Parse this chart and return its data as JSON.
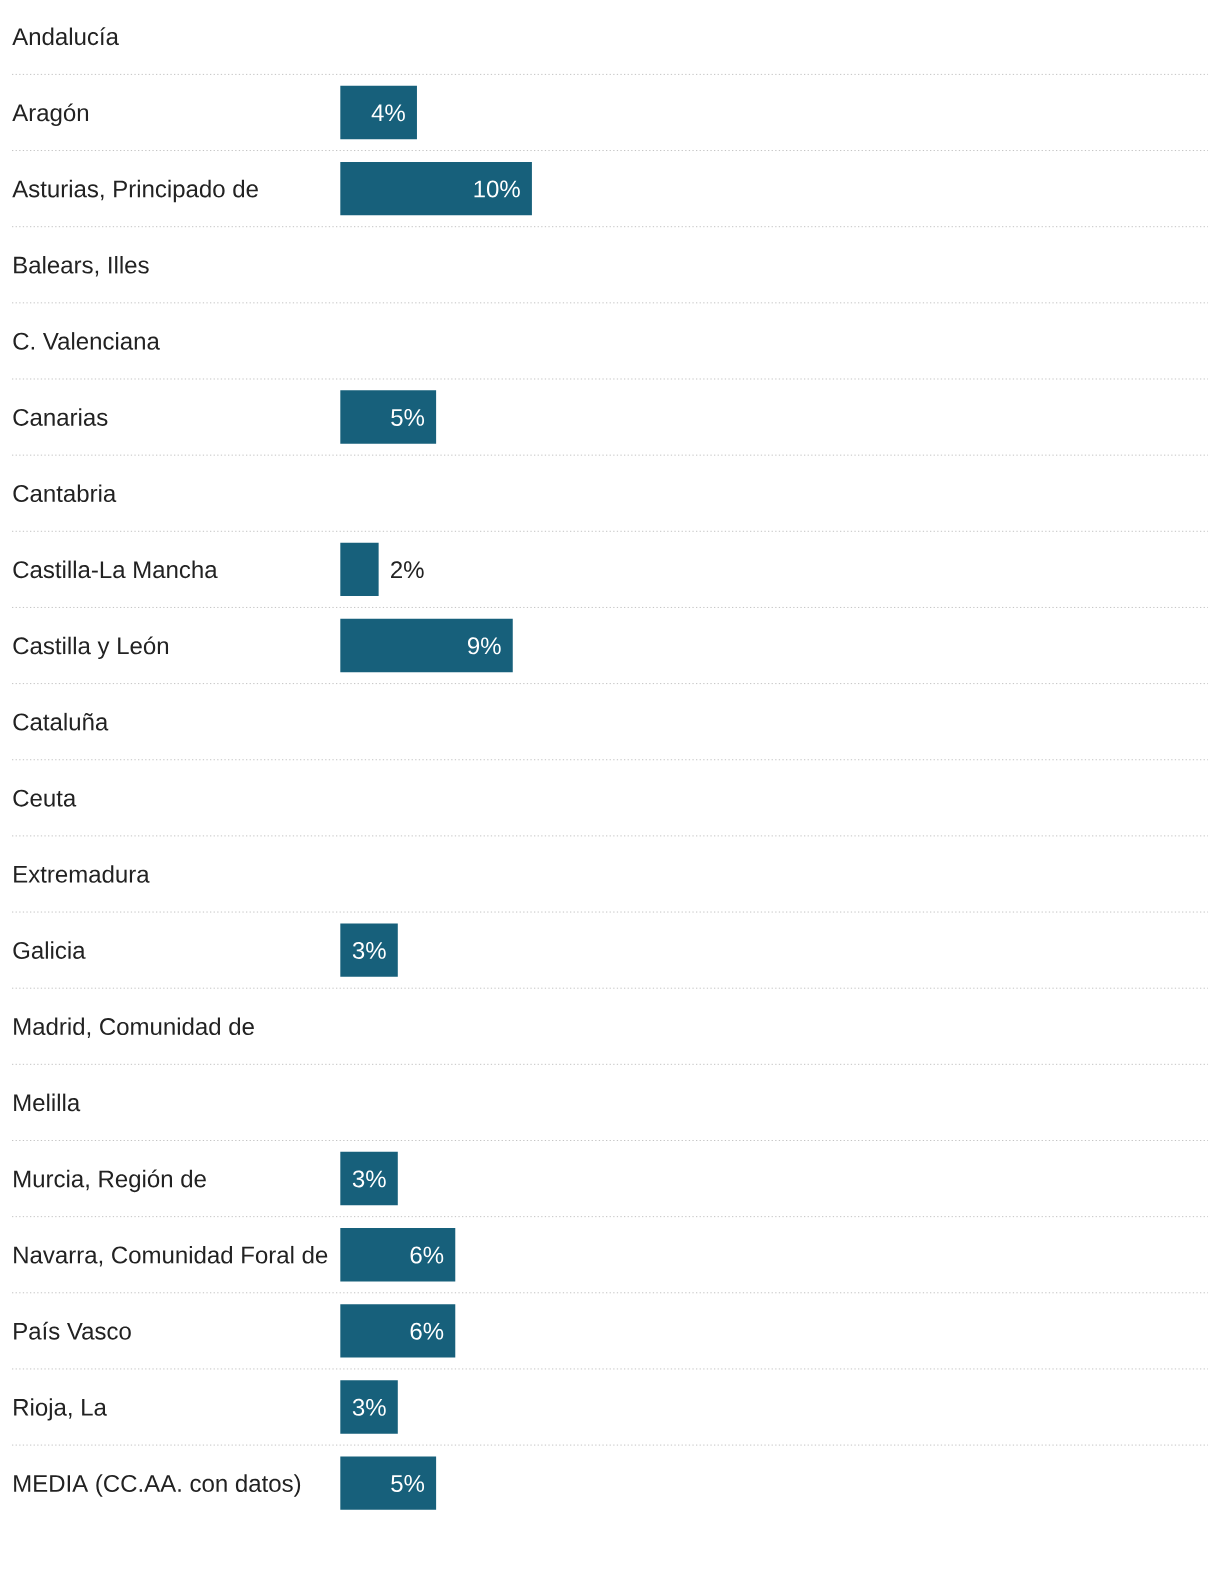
{
  "chart_data": {
    "type": "bar",
    "orientation": "horizontal",
    "categories": [
      "Andalucía",
      "Aragón",
      "Asturias, Principado de",
      "Balears, Illes",
      "C. Valenciana",
      "Canarias",
      "Cantabria",
      "Castilla-La Mancha",
      "Castilla y León",
      "Cataluña",
      "Ceuta",
      "Extremadura",
      "Galicia",
      "Madrid, Comunidad de",
      "Melilla",
      "Murcia, Región de",
      "Navarra, Comunidad Foral de",
      "País Vasco",
      "Rioja, La",
      "MEDIA (CC.AA. con datos)"
    ],
    "values": [
      null,
      4,
      10,
      null,
      null,
      5,
      null,
      2,
      9,
      null,
      null,
      null,
      3,
      null,
      null,
      3,
      6,
      6,
      3,
      5
    ],
    "value_labels": [
      null,
      "4%",
      "10%",
      null,
      null,
      "5%",
      null,
      "2%",
      "9%",
      null,
      null,
      null,
      "3%",
      null,
      null,
      "3%",
      "6%",
      "6%",
      "3%",
      "5%"
    ],
    "color": "#17607b",
    "grid": "y"
  }
}
